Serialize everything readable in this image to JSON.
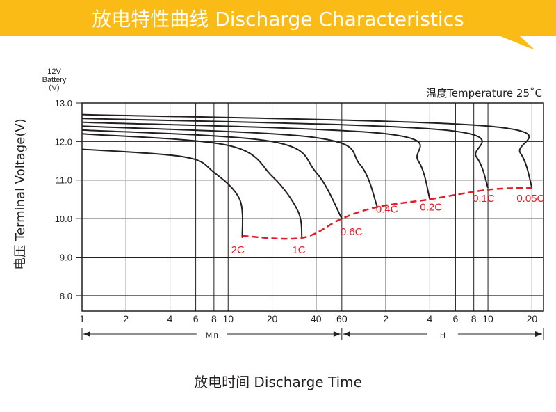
{
  "banner": {
    "title": "放电特性曲线 Discharge Characteristics",
    "color": "#fbbb16"
  },
  "chart_data": {
    "type": "line",
    "title": "放电特性曲线 Discharge Characteristics",
    "xlabel": "放电时间 Discharge Time",
    "ylabel": "电压 Terminal Voltage(V)",
    "y_unit_label": [
      "12V",
      "Battery",
      "（V）"
    ],
    "temperature_note": "温度Temperature 25˚C",
    "ylim": [
      7.6,
      13.0
    ],
    "yticks": [
      13.0,
      12.0,
      11.0,
      10.0,
      9.0,
      8.0
    ],
    "x_axis_scale": "log",
    "x_ticks_min": [
      "1",
      "2",
      "4",
      "6",
      "8",
      "10",
      "20",
      "40",
      "60"
    ],
    "x_ticks_h": [
      "2",
      "4",
      "6",
      "8",
      "10",
      "20"
    ],
    "x_ranges": {
      "min": "Min",
      "h": "H"
    },
    "grid": true,
    "series": [
      {
        "name": "2C",
        "points": [
          [
            1,
            11.8
          ],
          [
            5,
            11.6
          ],
          [
            8,
            11.2
          ],
          [
            12,
            10.5
          ],
          [
            12.5,
            9.5
          ]
        ]
      },
      {
        "name": "1C",
        "points": [
          [
            1,
            12.2
          ],
          [
            10,
            11.9
          ],
          [
            20,
            11.1
          ],
          [
            30,
            10.2
          ],
          [
            32,
            9.5
          ]
        ]
      },
      {
        "name": "0.6C",
        "points": [
          [
            1,
            12.3
          ],
          [
            20,
            12.0
          ],
          [
            40,
            11.2
          ],
          [
            60,
            10.0
          ]
        ]
      },
      {
        "name": "0.4C",
        "points": [
          [
            1,
            12.4
          ],
          [
            40,
            12.1
          ],
          [
            80,
            11.4
          ],
          [
            105,
            10.3
          ]
        ]
      },
      {
        "name": "0.2C",
        "points": [
          [
            1,
            12.5
          ],
          [
            120,
            12.2
          ],
          [
            200,
            11.5
          ],
          [
            240,
            10.5
          ]
        ]
      },
      {
        "name": "0.1C",
        "points": [
          [
            1,
            12.6
          ],
          [
            300,
            12.3
          ],
          [
            500,
            11.6
          ],
          [
            600,
            10.8
          ]
        ]
      },
      {
        "name": "0.05C",
        "points": [
          [
            1,
            12.7
          ],
          [
            600,
            12.4
          ],
          [
            1000,
            11.7
          ],
          [
            1200,
            10.8
          ]
        ]
      }
    ],
    "end_of_discharge": [
      [
        12.5,
        9.55
      ],
      [
        32,
        9.5
      ],
      [
        60,
        10.0
      ],
      [
        105,
        10.3
      ],
      [
        240,
        10.5
      ],
      [
        600,
        10.75
      ],
      [
        1200,
        10.8
      ]
    ]
  }
}
